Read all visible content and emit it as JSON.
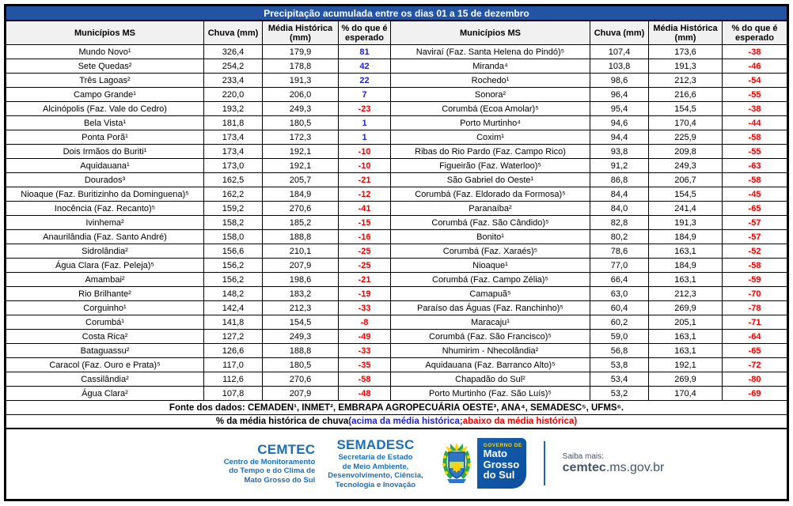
{
  "title": "Precipitação acumulada entre os dias 01 a 15 de dezembro",
  "columns": [
    "Municípios MS",
    "Chuva (mm)",
    "Média Histórica (mm)",
    "% do que é esperado"
  ],
  "left_rows": [
    {
      "name": "Mundo Novo¹",
      "chuva": "326,4",
      "media": "179,9",
      "pct": "81"
    },
    {
      "name": "Sete Quedas²",
      "chuva": "254,2",
      "media": "178,8",
      "pct": "42"
    },
    {
      "name": "Três Lagoas²",
      "chuva": "233,4",
      "media": "191,3",
      "pct": "22"
    },
    {
      "name": "Campo Grande¹",
      "chuva": "220,0",
      "media": "206,0",
      "pct": "7"
    },
    {
      "name": "Alcinópolis (Faz. Vale do Cedro)",
      "chuva": "193,2",
      "media": "249,3",
      "pct": "-23"
    },
    {
      "name": "Bela Vista¹",
      "chuva": "181,8",
      "media": "180,5",
      "pct": "1"
    },
    {
      "name": "Ponta Porã¹",
      "chuva": "173,4",
      "media": "172,3",
      "pct": "1"
    },
    {
      "name": "Dois Irmãos do Buriti¹",
      "chuva": "173,4",
      "media": "192,1",
      "pct": "-10"
    },
    {
      "name": "Aquidauana¹",
      "chuva": "173,0",
      "media": "192,1",
      "pct": "-10"
    },
    {
      "name": "Dourados³",
      "chuva": "162,5",
      "media": "205,7",
      "pct": "-21"
    },
    {
      "name": "Nioaque (Faz. Buritizinho da Dominguena)⁵",
      "chuva": "162,2",
      "media": "184,9",
      "pct": "-12"
    },
    {
      "name": "Inocência (Faz. Recanto)⁵",
      "chuva": "159,2",
      "media": "270,6",
      "pct": "-41"
    },
    {
      "name": "Ivinhema²",
      "chuva": "158,2",
      "media": "185,2",
      "pct": "-15"
    },
    {
      "name": "Anaurilândia (Faz. Santo André)",
      "chuva": "158,0",
      "media": "188,8",
      "pct": "-16"
    },
    {
      "name": "Sidrolândia²",
      "chuva": "156,6",
      "media": "210,1",
      "pct": "-25"
    },
    {
      "name": "Água Clara (Faz. Peleja)⁵",
      "chuva": "156,2",
      "media": "207,9",
      "pct": "-25"
    },
    {
      "name": "Amambai²",
      "chuva": "156,2",
      "media": "198,6",
      "pct": "-21"
    },
    {
      "name": "Rio Brilhante²",
      "chuva": "148,2",
      "media": "183,2",
      "pct": "-19"
    },
    {
      "name": "Corguinho¹",
      "chuva": "142,4",
      "media": "212,3",
      "pct": "-33"
    },
    {
      "name": "Corumbá¹",
      "chuva": "141,8",
      "media": "154,5",
      "pct": "-8"
    },
    {
      "name": "Costa Rica²",
      "chuva": "127,2",
      "media": "249,3",
      "pct": "-49"
    },
    {
      "name": "Bataguassu²",
      "chuva": "126,6",
      "media": "188,8",
      "pct": "-33"
    },
    {
      "name": "Caracol (Faz. Ouro e Prata)⁵",
      "chuva": "117,0",
      "media": "180,5",
      "pct": "-35"
    },
    {
      "name": "Cassilândia²",
      "chuva": "112,6",
      "media": "270,6",
      "pct": "-58"
    },
    {
      "name": "Água Clara²",
      "chuva": "107,8",
      "media": "207,9",
      "pct": "-48"
    }
  ],
  "right_rows": [
    {
      "name": "Naviraí (Faz. Santa Helena do Pindó)⁵",
      "chuva": "107,4",
      "media": "173,6",
      "pct": "-38"
    },
    {
      "name": "Miranda⁴",
      "chuva": "103,8",
      "media": "191,3",
      "pct": "-46"
    },
    {
      "name": "Rochedo¹",
      "chuva": "98,6",
      "media": "212,3",
      "pct": "-54"
    },
    {
      "name": "Sonora²",
      "chuva": "96,4",
      "media": "216,6",
      "pct": "-55"
    },
    {
      "name": "Corumbá (Ecoa Amolar)⁵",
      "chuva": "95,4",
      "media": "154,5",
      "pct": "-38"
    },
    {
      "name": "Porto Murtinho⁴",
      "chuva": "94,6",
      "media": "170,4",
      "pct": "-44"
    },
    {
      "name": "Coxim¹",
      "chuva": "94,4",
      "media": "225,9",
      "pct": "-58"
    },
    {
      "name": "Ribas do Rio Pardo (Faz. Campo Rico)",
      "chuva": "93,8",
      "media": "209,8",
      "pct": "-55"
    },
    {
      "name": "Figueirão (Faz. Waterloo)⁵",
      "chuva": "91,2",
      "media": "249,3",
      "pct": "-63"
    },
    {
      "name": "São Gabriel do Oeste¹",
      "chuva": "86,8",
      "media": "206,7",
      "pct": "-58"
    },
    {
      "name": "Corumbá (Faz. Eldorado da Formosa)⁵",
      "chuva": "84,4",
      "media": "154,5",
      "pct": "-45"
    },
    {
      "name": "Paranaíba²",
      "chuva": "84,0",
      "media": "241,4",
      "pct": "-65"
    },
    {
      "name": "Corumbá (Faz. São Cândido)⁵",
      "chuva": "82,8",
      "media": "191,3",
      "pct": "-57"
    },
    {
      "name": "Bonito¹",
      "chuva": "80,2",
      "media": "184,9",
      "pct": "-57"
    },
    {
      "name": "Corumbá (Faz. Xaraés)⁵",
      "chuva": "78,6",
      "media": "163,1",
      "pct": "-52"
    },
    {
      "name": "Nioaque¹",
      "chuva": "77,0",
      "media": "184,9",
      "pct": "-58"
    },
    {
      "name": "Corumbá (Faz. Campo Zélia)⁵",
      "chuva": "66,4",
      "media": "163,1",
      "pct": "-59"
    },
    {
      "name": "Camapuã⁵",
      "chuva": "63,0",
      "media": "212,3",
      "pct": "-70"
    },
    {
      "name": "Paraíso das Águas (Faz. Ranchinho)⁵",
      "chuva": "60,4",
      "media": "269,9",
      "pct": "-78"
    },
    {
      "name": "Maracaju¹",
      "chuva": "60,2",
      "media": "205,1",
      "pct": "-71"
    },
    {
      "name": "Corumbá (Faz. São Francisco)⁵",
      "chuva": "59,0",
      "media": "163,1",
      "pct": "-64"
    },
    {
      "name": "Nhumirim - Nhecolândia²",
      "chuva": "56,8",
      "media": "163,1",
      "pct": "-65"
    },
    {
      "name": "Aquidauana (Faz. Barranco Alto)⁵",
      "chuva": "53,8",
      "media": "192,1",
      "pct": "-72"
    },
    {
      "name": "Chapadão do Sul²",
      "chuva": "53,4",
      "media": "269,9",
      "pct": "-80"
    },
    {
      "name": "Porto Murtinho (Faz. São Luís)⁵",
      "chuva": "53,2",
      "media": "170,4",
      "pct": "-69"
    }
  ],
  "notes": {
    "fonte": "Fonte dos dados:  CEMADEN¹, INMET², EMBRAPA AGROPECUÁRIA OESTE³, ANA⁴, SEMADESC⁵, UFMS⁶.",
    "legend_prefix": "% da média histórica de chuva ",
    "legend_above": "(acima da média histórica;",
    "legend_below": " abaixo da média histórica)"
  },
  "footer": {
    "cemtec": {
      "name": "CEMTEC",
      "lines": [
        "Centro de Monitoramento",
        "do Tempo e do Clima de",
        "Mato Grosso do Sul"
      ]
    },
    "semadesc": {
      "name": "SEMADESC",
      "lines": [
        "Secretaria de Estado",
        "de Meio Ambiente,",
        "Desenvolvimento, Ciência,",
        "Tecnologia e Inovação"
      ]
    },
    "government": {
      "label": "GOVERNO DE",
      "lines": [
        "Mato",
        "Grosso",
        "do Sul"
      ]
    },
    "saiba_label": "Saiba mais:",
    "url_bold": "cemtec",
    "url_rest": ".ms.gov.br"
  },
  "colors": {
    "title_bg": "#2353A3",
    "positive_pct": "#2222CC",
    "negative_pct": "#EE0000",
    "brand_blue": "#1C6FB7",
    "gov_yellow": "#FFD200",
    "header_bg": "#F1F1F1"
  }
}
